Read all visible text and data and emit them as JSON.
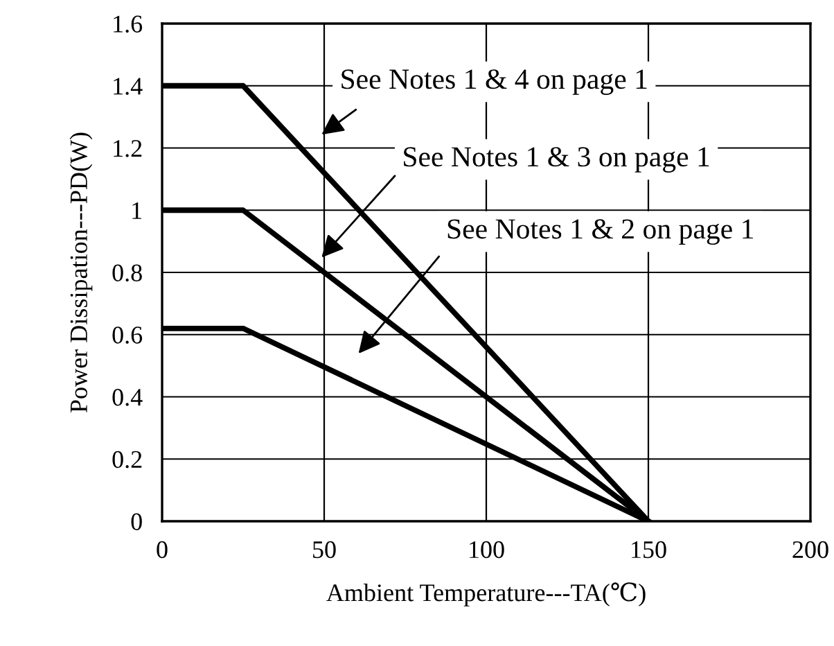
{
  "chart_data": {
    "type": "line",
    "xlabel": "Ambient Temperature---TA(℃)",
    "ylabel": "Power Dissipation---PD(W)",
    "series": [
      {
        "color": "#000000",
        "x": [
          0,
          25,
          150
        ],
        "values": [
          1.4,
          1.4,
          0
        ]
      },
      {
        "color": "#000000",
        "x": [
          0,
          25,
          150
        ],
        "values": [
          1.0,
          1.0,
          0
        ]
      },
      {
        "color": "#000000",
        "x": [
          0,
          25,
          150
        ],
        "values": [
          0.62,
          0.62,
          0
        ]
      }
    ],
    "xlim": [
      0,
      200
    ],
    "xticks": [
      0,
      50,
      100,
      150,
      200
    ],
    "ylim": [
      0,
      1.6
    ],
    "yticks": [
      0,
      {
        "value": 0.2,
        "label": "0.2"
      },
      {
        "value": 0.4,
        "label": "0.4"
      },
      {
        "value": 0.6,
        "label": "0.6"
      },
      {
        "value": 0.8,
        "label": "0.8"
      },
      1,
      {
        "value": 1.2,
        "label": "1.2"
      },
      {
        "value": 1.4,
        "label": "1.4"
      },
      {
        "value": 1.6,
        "label": "1.6"
      }
    ],
    "grid": true,
    "marker": "none",
    "line_style": "solid",
    "annotations": [
      "See Notes 1 & 4 on page 1",
      "See Notes 1 & 3 on page 1",
      "See Notes 1 & 2 on page 1"
    ]
  }
}
